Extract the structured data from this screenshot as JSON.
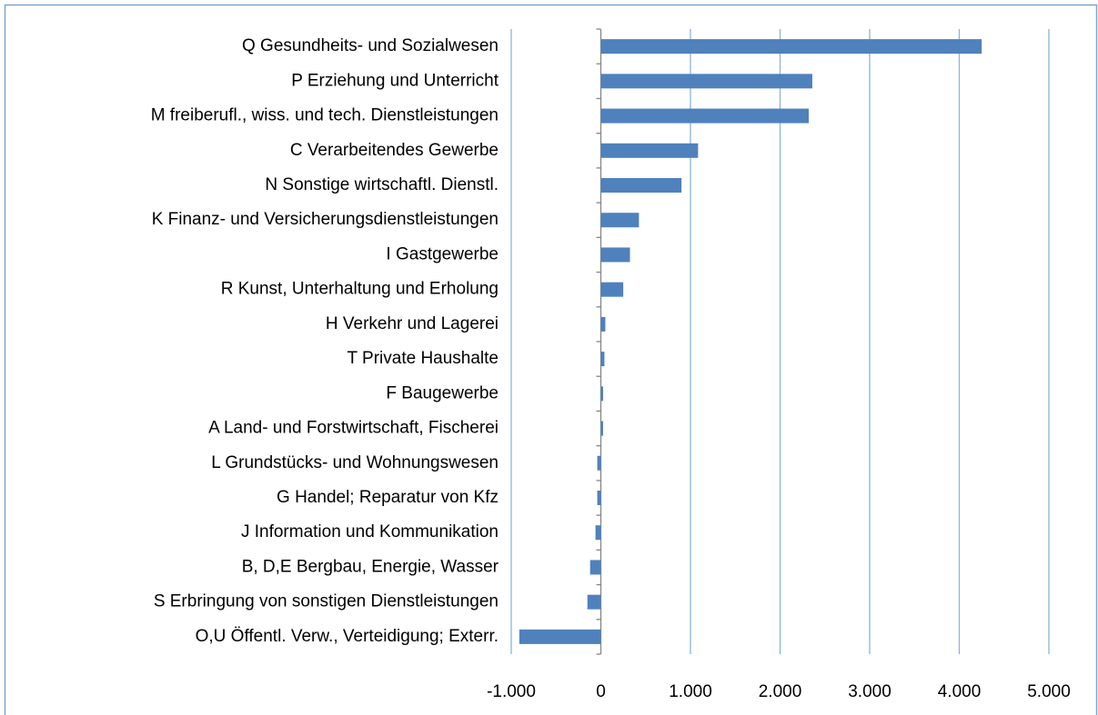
{
  "chart_data": {
    "type": "bar",
    "orientation": "horizontal",
    "categories": [
      "Q Gesundheits- und Sozialwesen",
      "P Erziehung und Unterricht",
      "M  freiberufl., wiss. und tech. Dienstleistungen",
      "C Verarbeitendes Gewerbe",
      "N Sonstige wirtschaftl. Dienstl.",
      "K  Finanz- und Versicherungsdienstleistungen",
      "I Gastgewerbe",
      "R Kunst, Unterhaltung und Erholung",
      "H Verkehr und Lagerei",
      "T Private Haushalte",
      "F Baugewerbe",
      "A Land- und Forstwirtschaft, Fischerei",
      "L Grundstücks- und Wohnungswesen",
      "G Handel; Reparatur von Kfz",
      "J Information und Kommunikation",
      "B, D,E Bergbau, Energie, Wasser",
      "S Erbringung von sonstigen Dienstleistungen",
      "O,U Öffentl. Verw., Verteidigung; Exterr."
    ],
    "values": [
      4250,
      2360,
      2320,
      1085,
      900,
      425,
      325,
      250,
      50,
      40,
      25,
      25,
      -40,
      -40,
      -60,
      -120,
      -150,
      -910
    ],
    "color": "#4f81bd",
    "xlim": [
      -1000,
      5000
    ],
    "xticks": [
      {
        "value": -1000,
        "label": "-1.000"
      },
      0,
      {
        "value": 1000,
        "label": "1.000"
      },
      {
        "value": 2000,
        "label": "2.000"
      },
      {
        "value": 3000,
        "label": "3.000"
      },
      {
        "value": 4000,
        "label": "4.000"
      },
      {
        "value": 5000,
        "label": "5.000"
      }
    ],
    "grid": true
  }
}
